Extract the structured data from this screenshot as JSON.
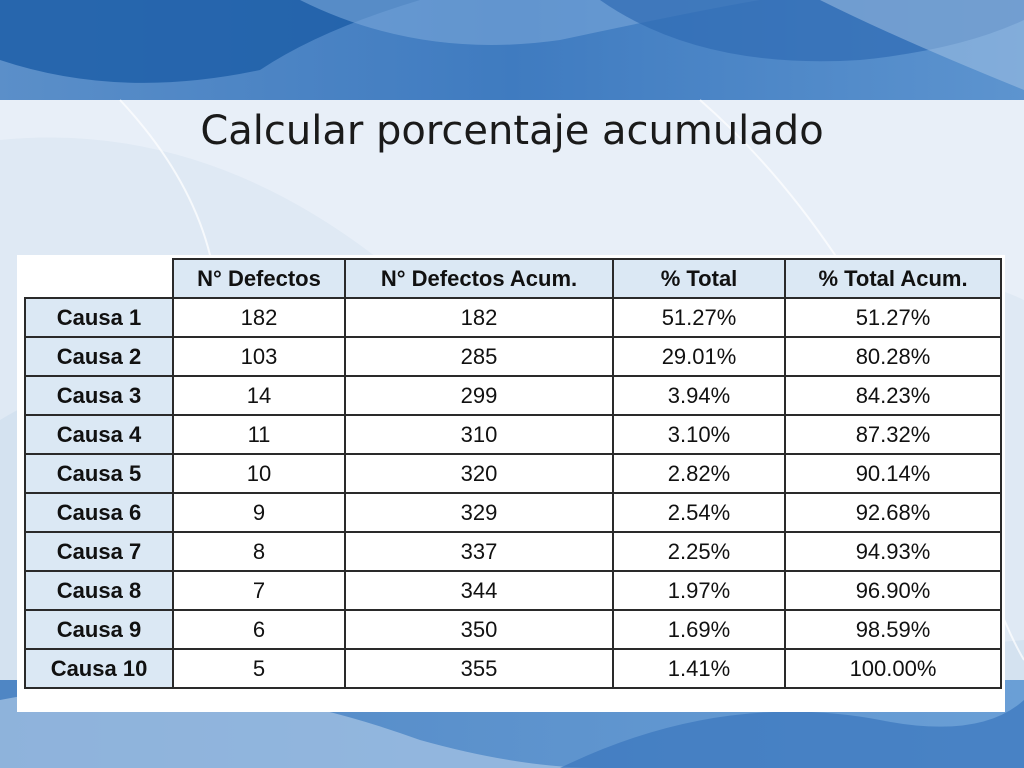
{
  "slide": {
    "title": "Calcular porcentaje acumulado"
  },
  "colors": {
    "header_fill": "#dbe8f4",
    "background_dark_blue": "#1f5fa8",
    "background_light_blue": "#dfe9f4"
  },
  "table": {
    "columns": [
      "N° Defectos",
      "N° Defectos Acum.",
      "% Total",
      "% Total Acum."
    ],
    "rows": [
      {
        "label": "Causa 1",
        "defectos": "182",
        "acum": "182",
        "pct": "51.27%",
        "pct_acum": "51.27%"
      },
      {
        "label": "Causa 2",
        "defectos": "103",
        "acum": "285",
        "pct": "29.01%",
        "pct_acum": "80.28%"
      },
      {
        "label": "Causa 3",
        "defectos": "14",
        "acum": "299",
        "pct": "3.94%",
        "pct_acum": "84.23%"
      },
      {
        "label": "Causa 4",
        "defectos": "11",
        "acum": "310",
        "pct": "3.10%",
        "pct_acum": "87.32%"
      },
      {
        "label": "Causa 5",
        "defectos": "10",
        "acum": "320",
        "pct": "2.82%",
        "pct_acum": "90.14%"
      },
      {
        "label": "Causa 6",
        "defectos": "9",
        "acum": "329",
        "pct": "2.54%",
        "pct_acum": "92.68%"
      },
      {
        "label": "Causa 7",
        "defectos": "8",
        "acum": "337",
        "pct": "2.25%",
        "pct_acum": "94.93%"
      },
      {
        "label": "Causa 8",
        "defectos": "7",
        "acum": "344",
        "pct": "1.97%",
        "pct_acum": "96.90%"
      },
      {
        "label": "Causa 9",
        "defectos": "6",
        "acum": "350",
        "pct": "1.69%",
        "pct_acum": "98.59%"
      },
      {
        "label": "Causa 10",
        "defectos": "5",
        "acum": "355",
        "pct": "1.41%",
        "pct_acum": "100.00%"
      }
    ]
  }
}
